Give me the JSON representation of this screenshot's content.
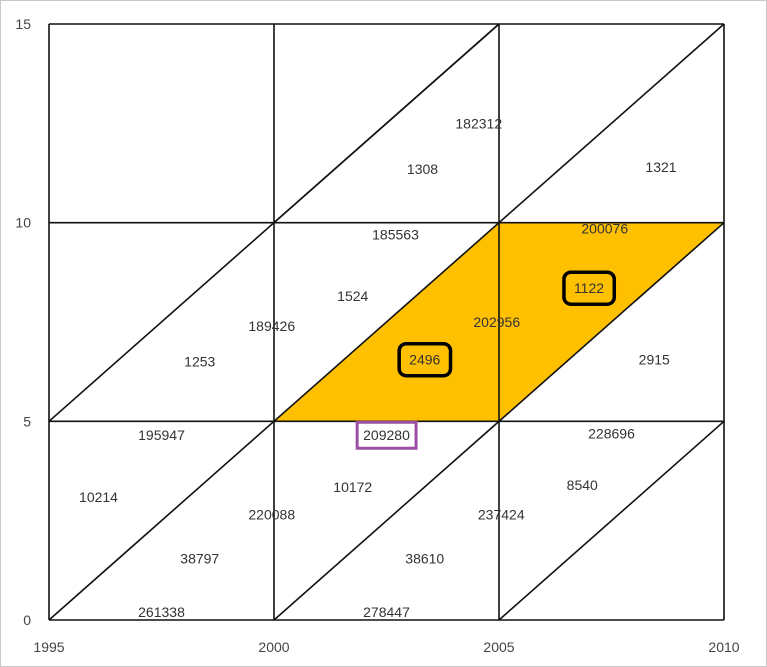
{
  "chart_data": {
    "type": "lexis-diagram",
    "x_ticks": [
      "1995",
      "2000",
      "2005",
      "2010"
    ],
    "y_ticks": [
      "0",
      "5",
      "10",
      "15"
    ],
    "xlim": [
      1995,
      2010
    ],
    "ylim": [
      0,
      15
    ],
    "grid_step": 5,
    "diagonals": [
      {
        "from": [
          1995,
          0
        ],
        "to": [
          2010,
          15
        ]
      },
      {
        "from": [
          2000,
          0
        ],
        "to": [
          2010,
          10
        ]
      },
      {
        "from": [
          2005,
          0
        ],
        "to": [
          2010,
          5
        ]
      },
      {
        "from": [
          1995,
          5
        ],
        "to": [
          2005,
          15
        ]
      },
      {
        "from": [
          2000,
          10
        ],
        "to": [
          2005,
          15
        ]
      }
    ],
    "highlight_region": {
      "color": "#ffc000",
      "corners": [
        [
          2000,
          5
        ],
        [
          2005,
          5
        ],
        [
          2010,
          10
        ],
        [
          2005,
          10
        ]
      ]
    },
    "cell_values": [
      {
        "text": "182312",
        "x": 2004.55,
        "y": 12.5
      },
      {
        "text": "1308",
        "x": 2003.3,
        "y": 11.35
      },
      {
        "text": "1321",
        "x": 2008.6,
        "y": 11.4
      },
      {
        "text": "185563",
        "x": 2002.7,
        "y": 9.7
      },
      {
        "text": "200076",
        "x": 2007.35,
        "y": 9.85
      },
      {
        "text": "1524",
        "x": 2001.75,
        "y": 8.15
      },
      {
        "text": "1122",
        "x": 2007.0,
        "y": 8.35,
        "boxed": true
      },
      {
        "text": "189426",
        "x": 1999.95,
        "y": 7.4
      },
      {
        "text": "202956",
        "x": 2004.95,
        "y": 7.5
      },
      {
        "text": "1253",
        "x": 1998.35,
        "y": 6.5
      },
      {
        "text": "2496",
        "x": 2003.35,
        "y": 6.55,
        "boxed": true
      },
      {
        "text": "2915",
        "x": 2008.45,
        "y": 6.55
      },
      {
        "text": "195947",
        "x": 1997.5,
        "y": 4.65
      },
      {
        "text": "209280",
        "x": 2002.5,
        "y": 4.65,
        "boxed_accent": true
      },
      {
        "text": "228696",
        "x": 2007.5,
        "y": 4.7
      },
      {
        "text": "10172",
        "x": 2001.75,
        "y": 3.35
      },
      {
        "text": "8540",
        "x": 2006.85,
        "y": 3.4
      },
      {
        "text": "10214",
        "x": 1996.1,
        "y": 3.1
      },
      {
        "text": "220088",
        "x": 1999.95,
        "y": 2.65
      },
      {
        "text": "237424",
        "x": 2005.05,
        "y": 2.65
      },
      {
        "text": "38797",
        "x": 1998.35,
        "y": 1.55
      },
      {
        "text": "38610",
        "x": 2003.35,
        "y": 1.55
      },
      {
        "text": "261338",
        "x": 1997.5,
        "y": 0.2
      },
      {
        "text": "278447",
        "x": 2002.5,
        "y": 0.2
      }
    ],
    "colors": {
      "lines": "#111111",
      "highlight": "#ffc000",
      "box_black": "#000000",
      "box_accent": "#9b4ea3"
    }
  }
}
